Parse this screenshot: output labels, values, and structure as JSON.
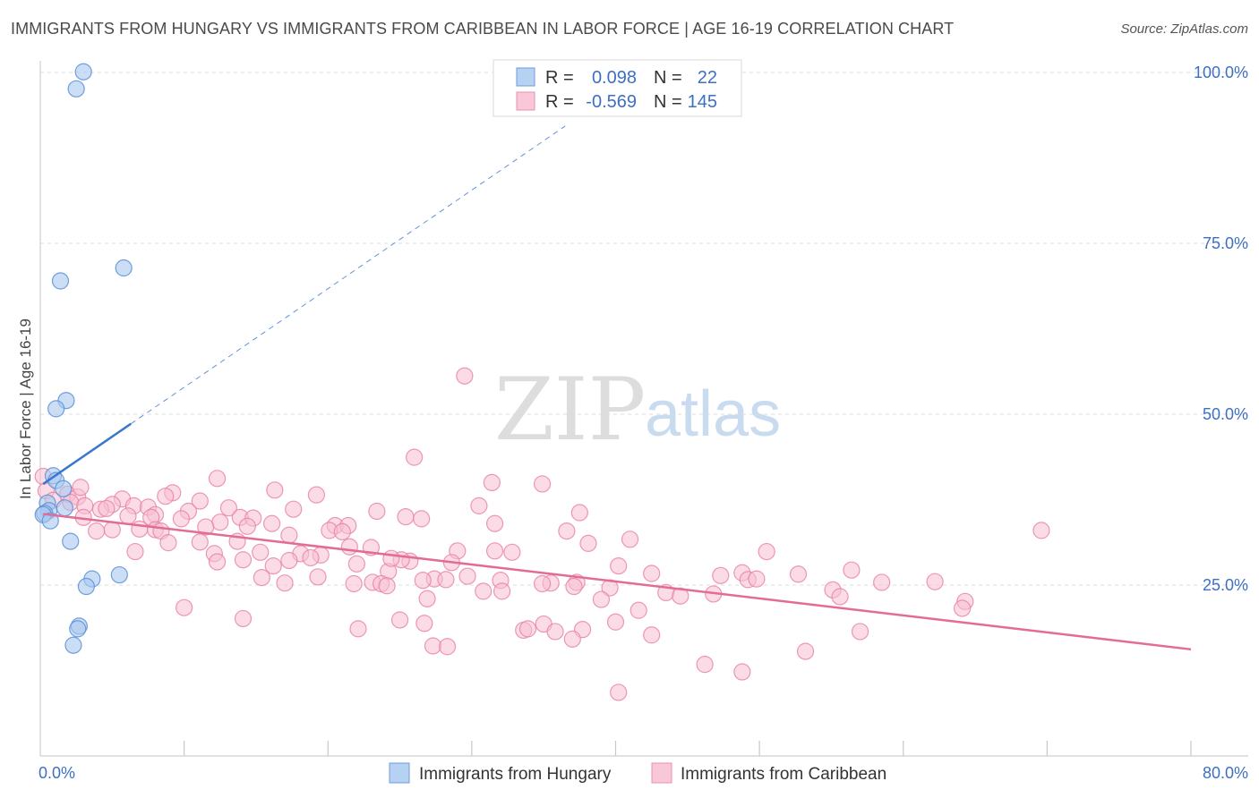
{
  "title": "IMMIGRANTS FROM HUNGARY VS IMMIGRANTS FROM CARIBBEAN IN LABOR FORCE | AGE 16-19 CORRELATION CHART",
  "source": "Source: ZipAtlas.com",
  "watermark": {
    "zip": "ZIP",
    "atlas": "atlas"
  },
  "colors": {
    "hungary_fill": "#a9c8f0",
    "hungary_stroke": "#5b8fd6",
    "hungary_line": "#3a78d0",
    "caribbean_fill": "#f7bfd2",
    "caribbean_stroke": "#e77fa3",
    "caribbean_line": "#e26b98",
    "tick_text": "#3d6fc4",
    "grid": "#dcdcdc"
  },
  "legend": {
    "rows": [
      {
        "r_label": "R =",
        "r_value": "0.098",
        "n_label": "N =",
        "n_value": "22"
      },
      {
        "r_label": "R =",
        "r_value": "-0.569",
        "n_label": "N =",
        "n_value": "145"
      }
    ]
  },
  "chart_data": {
    "type": "scatter",
    "title": "IMMIGRANTS FROM HUNGARY VS IMMIGRANTS FROM CARIBBEAN IN LABOR FORCE | AGE 16-19 CORRELATION CHART",
    "xlabel": "",
    "ylabel": "In Labor Force | Age 16-19",
    "xlim": [
      0,
      80
    ],
    "ylim": [
      0,
      104
    ],
    "x_tick_labels": [
      "0.0%",
      "80.0%"
    ],
    "y_ticks": [
      25,
      50,
      75,
      100
    ],
    "y_tick_labels": [
      "25.0%",
      "50.0%",
      "75.0%",
      "100.0%"
    ],
    "grid": true,
    "legend_position": "top-center",
    "series": [
      {
        "name": "Immigrants from Hungary",
        "r": 0.098,
        "n": 22,
        "trend": {
          "x0": 0.2,
          "y0": 39.8,
          "x1": 6.3,
          "y1": 48.6,
          "dashed_to_x": 36.5
        },
        "points": [
          [
            3.0,
            100.1
          ],
          [
            2.5,
            97.6
          ],
          [
            5.8,
            71.4
          ],
          [
            1.4,
            69.5
          ],
          [
            1.8,
            52.0
          ],
          [
            1.1,
            50.8
          ],
          [
            0.9,
            41.0
          ],
          [
            1.1,
            40.3
          ],
          [
            1.6,
            39.1
          ],
          [
            0.5,
            37.0
          ],
          [
            0.6,
            35.9
          ],
          [
            0.3,
            35.5
          ],
          [
            0.2,
            35.3
          ],
          [
            0.7,
            34.4
          ],
          [
            2.1,
            31.4
          ],
          [
            5.5,
            26.5
          ],
          [
            3.6,
            25.9
          ],
          [
            3.2,
            24.8
          ],
          [
            2.7,
            19.0
          ],
          [
            2.6,
            18.6
          ],
          [
            2.3,
            16.2
          ],
          [
            1.7,
            36.3
          ]
        ]
      },
      {
        "name": "Immigrants from Caribbean",
        "r": -0.569,
        "n": 145,
        "trend": {
          "x0": 0.2,
          "y0": 35.4,
          "x1": 80.0,
          "y1": 15.6
        },
        "points": [
          [
            29.5,
            55.6
          ],
          [
            26.0,
            43.7
          ],
          [
            12.3,
            40.6
          ],
          [
            31.4,
            40.0
          ],
          [
            34.9,
            39.8
          ],
          [
            0.2,
            40.9
          ],
          [
            0.4,
            38.8
          ],
          [
            1.9,
            38.3
          ],
          [
            2.6,
            37.9
          ],
          [
            0.9,
            37.4
          ],
          [
            2.1,
            37.1
          ],
          [
            2.8,
            39.3
          ],
          [
            16.3,
            38.9
          ],
          [
            19.2,
            38.2
          ],
          [
            9.2,
            38.5
          ],
          [
            8.7,
            38.0
          ],
          [
            5.7,
            37.6
          ],
          [
            5.0,
            36.8
          ],
          [
            3.1,
            36.6
          ],
          [
            4.2,
            36.1
          ],
          [
            4.6,
            36.2
          ],
          [
            6.5,
            36.6
          ],
          [
            7.5,
            36.4
          ],
          [
            11.1,
            37.3
          ],
          [
            13.1,
            36.3
          ],
          [
            17.6,
            36.1
          ],
          [
            10.3,
            35.8
          ],
          [
            8.0,
            35.3
          ],
          [
            6.1,
            35.1
          ],
          [
            3.0,
            34.9
          ],
          [
            7.7,
            34.9
          ],
          [
            9.8,
            34.7
          ],
          [
            12.5,
            34.2
          ],
          [
            13.9,
            34.9
          ],
          [
            14.8,
            34.8
          ],
          [
            16.1,
            34.0
          ],
          [
            14.4,
            33.6
          ],
          [
            11.5,
            33.5
          ],
          [
            8.0,
            33.1
          ],
          [
            6.9,
            33.2
          ],
          [
            8.4,
            32.9
          ],
          [
            5.0,
            33.1
          ],
          [
            3.9,
            32.9
          ],
          [
            23.4,
            35.8
          ],
          [
            25.4,
            35.0
          ],
          [
            26.5,
            34.7
          ],
          [
            30.5,
            36.6
          ],
          [
            31.6,
            34.0
          ],
          [
            37.5,
            35.6
          ],
          [
            20.5,
            33.7
          ],
          [
            21.4,
            33.7
          ],
          [
            20.1,
            33.0
          ],
          [
            21.0,
            32.8
          ],
          [
            17.3,
            32.3
          ],
          [
            13.7,
            31.4
          ],
          [
            11.1,
            31.3
          ],
          [
            8.9,
            31.2
          ],
          [
            6.6,
            29.9
          ],
          [
            12.1,
            29.6
          ],
          [
            15.3,
            29.8
          ],
          [
            18.1,
            29.6
          ],
          [
            19.5,
            29.4
          ],
          [
            21.5,
            30.6
          ],
          [
            23.0,
            30.5
          ],
          [
            29.0,
            30.0
          ],
          [
            32.8,
            29.8
          ],
          [
            36.6,
            32.9
          ],
          [
            38.1,
            31.1
          ],
          [
            41.0,
            31.7
          ],
          [
            50.5,
            29.9
          ],
          [
            14.1,
            28.7
          ],
          [
            12.3,
            28.4
          ],
          [
            16.2,
            27.8
          ],
          [
            17.3,
            28.6
          ],
          [
            18.8,
            29.0
          ],
          [
            22.0,
            28.1
          ],
          [
            24.2,
            27.0
          ],
          [
            25.7,
            28.5
          ],
          [
            28.6,
            28.3
          ],
          [
            31.6,
            30.0
          ],
          [
            29.7,
            26.3
          ],
          [
            27.4,
            25.9
          ],
          [
            26.6,
            25.7
          ],
          [
            25.1,
            28.7
          ],
          [
            24.4,
            28.9
          ],
          [
            40.2,
            27.8
          ],
          [
            42.5,
            26.7
          ],
          [
            15.4,
            26.1
          ],
          [
            17.0,
            25.3
          ],
          [
            19.3,
            26.2
          ],
          [
            21.8,
            25.2
          ],
          [
            23.1,
            25.4
          ],
          [
            23.7,
            25.2
          ],
          [
            24.1,
            24.9
          ],
          [
            28.2,
            25.8
          ],
          [
            32.0,
            25.7
          ],
          [
            35.5,
            25.3
          ],
          [
            37.3,
            25.4
          ],
          [
            39.6,
            24.6
          ],
          [
            47.3,
            26.4
          ],
          [
            48.8,
            26.8
          ],
          [
            49.2,
            25.8
          ],
          [
            49.8,
            25.9
          ],
          [
            52.7,
            26.6
          ],
          [
            56.4,
            27.2
          ],
          [
            58.5,
            25.4
          ],
          [
            62.2,
            25.5
          ],
          [
            30.8,
            24.1
          ],
          [
            32.1,
            24.1
          ],
          [
            34.9,
            25.2
          ],
          [
            37.1,
            24.8
          ],
          [
            43.5,
            23.9
          ],
          [
            44.5,
            23.4
          ],
          [
            46.8,
            23.7
          ],
          [
            55.1,
            24.3
          ],
          [
            55.6,
            23.3
          ],
          [
            26.9,
            23.0
          ],
          [
            39.0,
            22.9
          ],
          [
            64.3,
            22.6
          ],
          [
            64.1,
            21.6
          ],
          [
            41.6,
            21.3
          ],
          [
            40.0,
            19.6
          ],
          [
            37.7,
            18.5
          ],
          [
            33.6,
            18.4
          ],
          [
            33.9,
            18.6
          ],
          [
            35.0,
            19.3
          ],
          [
            35.8,
            18.2
          ],
          [
            37.0,
            17.1
          ],
          [
            42.5,
            17.7
          ],
          [
            27.3,
            16.1
          ],
          [
            28.3,
            16.0
          ],
          [
            26.7,
            19.4
          ],
          [
            25.0,
            19.9
          ],
          [
            22.1,
            18.6
          ],
          [
            10.0,
            21.7
          ],
          [
            14.1,
            20.1
          ],
          [
            46.2,
            13.4
          ],
          [
            48.8,
            12.3
          ],
          [
            53.2,
            15.3
          ],
          [
            40.2,
            9.3
          ],
          [
            69.6,
            33.0
          ],
          [
            57.0,
            18.2
          ]
        ]
      }
    ]
  },
  "bottom_legend": {
    "hungary": "Immigrants from Hungary",
    "caribbean": "Immigrants from Caribbean"
  }
}
